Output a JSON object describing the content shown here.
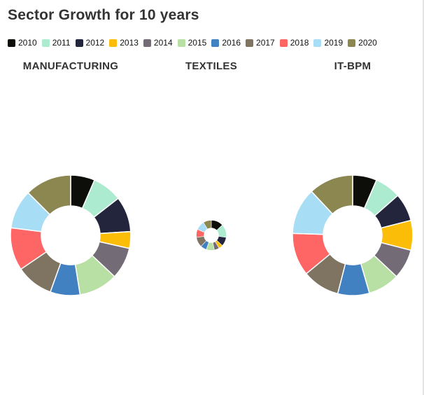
{
  "header": {
    "title": "Sector Growth for 10 years"
  },
  "legend": [
    {
      "label": "2010",
      "color": "#0d0d0a"
    },
    {
      "label": "2011",
      "color": "#acebd0"
    },
    {
      "label": "2012",
      "color": "#23253d"
    },
    {
      "label": "2013",
      "color": "#fbbd07"
    },
    {
      "label": "2014",
      "color": "#736c76"
    },
    {
      "label": "2015",
      "color": "#b8e0a5"
    },
    {
      "label": "2016",
      "color": "#4281c1"
    },
    {
      "label": "2017",
      "color": "#7e7461"
    },
    {
      "label": "2018",
      "color": "#fe6565"
    },
    {
      "label": "2019",
      "color": "#a8ddf6"
    },
    {
      "label": "2020",
      "color": "#8c8651"
    }
  ],
  "chart_data": [
    {
      "type": "pie",
      "title": "MANUFACTURING",
      "categories": [
        "2010",
        "2011",
        "2012",
        "2013",
        "2014",
        "2015",
        "2016",
        "2017",
        "2018",
        "2019",
        "2020"
      ],
      "values": [
        6.5,
        8.0,
        9.5,
        4.5,
        8.5,
        10.5,
        8.0,
        10.0,
        11.5,
        10.5,
        12.5
      ],
      "relative_size": 1.0
    },
    {
      "type": "pie",
      "title": "TEXTILES",
      "categories": [
        "2010",
        "2011",
        "2012",
        "2013",
        "2014",
        "2015",
        "2016",
        "2017",
        "2018",
        "2019",
        "2020"
      ],
      "values": [
        12,
        13,
        9,
        4,
        5,
        8,
        6,
        10,
        8,
        9,
        8
      ],
      "relative_size": 0.25
    },
    {
      "type": "pie",
      "title": "IT-BPM",
      "categories": [
        "2010",
        "2011",
        "2012",
        "2013",
        "2014",
        "2015",
        "2016",
        "2017",
        "2018",
        "2019",
        "2020"
      ],
      "values": [
        6.5,
        7.0,
        7.5,
        8.0,
        8.0,
        8.5,
        8.5,
        10.0,
        11.5,
        12.5,
        12.0
      ],
      "relative_size": 1.0
    }
  ]
}
